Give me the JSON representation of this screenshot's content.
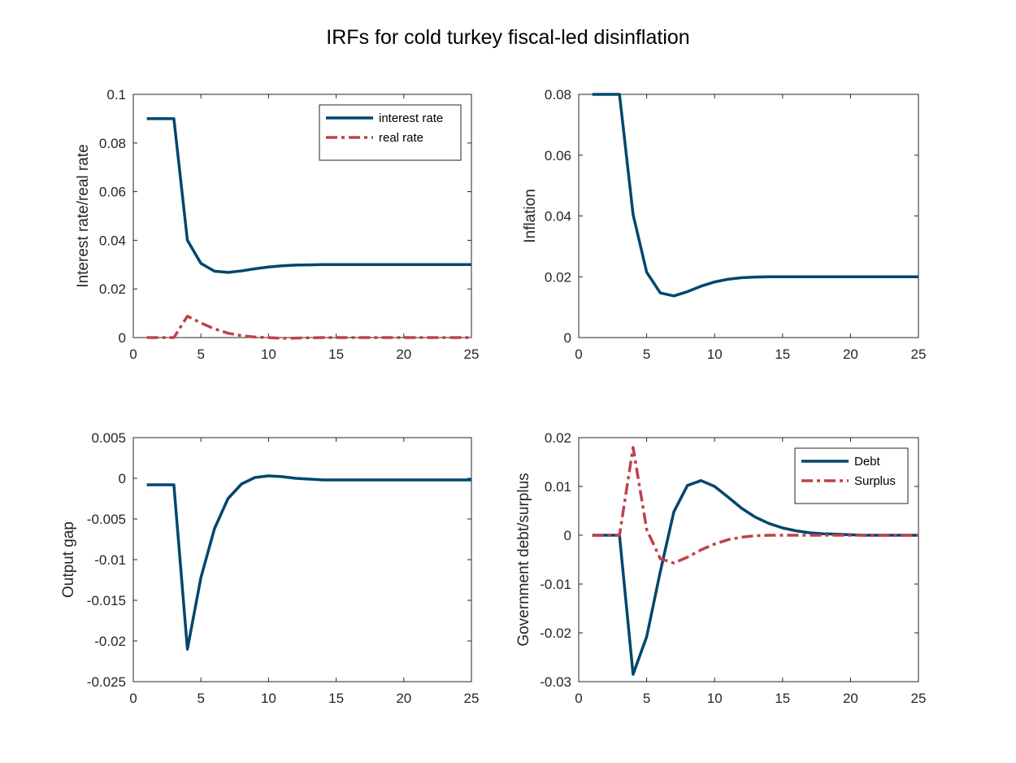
{
  "figure": {
    "title": "IRFs for cold turkey fiscal-led disinflation"
  },
  "colors": {
    "blue": "#00466e",
    "red": "#c0414c",
    "axis": "#262626",
    "background": "#ffffff"
  },
  "chart_data": [
    {
      "type": "line",
      "title": "",
      "xlabel": "",
      "ylabel": "Interest rate/real rate",
      "xlim": [
        0,
        25
      ],
      "ylim": [
        0,
        0.1
      ],
      "xticks": [
        0,
        5,
        10,
        15,
        20,
        25
      ],
      "xtick_labels": [
        "0",
        "5",
        "10",
        "15",
        "20",
        "25"
      ],
      "yticks": [
        0,
        0.02,
        0.04,
        0.06,
        0.08,
        0.1
      ],
      "ytick_labels": [
        "0",
        "0.02",
        "0.04",
        "0.06",
        "0.08",
        "0.1"
      ],
      "legend": "top-right",
      "grid": false,
      "x": [
        1,
        2,
        3,
        4,
        5,
        6,
        7,
        8,
        9,
        10,
        11,
        12,
        13,
        14,
        15,
        16,
        17,
        18,
        19,
        20,
        21,
        22,
        23,
        24,
        25
      ],
      "series": [
        {
          "name": "interest rate",
          "color": "#00466e",
          "style": "solid",
          "values": [
            0.09,
            0.09,
            0.09,
            0.04,
            0.0305,
            0.0273,
            0.0268,
            0.0274,
            0.0283,
            0.029,
            0.0295,
            0.0298,
            0.0299,
            0.03,
            0.03,
            0.03,
            0.03,
            0.03,
            0.03,
            0.03,
            0.03,
            0.03,
            0.03,
            0.03,
            0.03
          ]
        },
        {
          "name": "real rate",
          "color": "#c0414c",
          "style": "dashdot",
          "values": [
            0,
            0,
            0,
            0.0088,
            0.006,
            0.0036,
            0.0018,
            0.0008,
            0.0002,
            0,
            -0.0003,
            -0.0002,
            -0.0001,
            0,
            0,
            0,
            0,
            0,
            0,
            0,
            0,
            0,
            0,
            0,
            0
          ]
        }
      ]
    },
    {
      "type": "line",
      "title": "",
      "xlabel": "",
      "ylabel": "Inflation",
      "xlim": [
        0,
        25
      ],
      "ylim": [
        0,
        0.08
      ],
      "xticks": [
        0,
        5,
        10,
        15,
        20,
        25
      ],
      "xtick_labels": [
        "0",
        "5",
        "10",
        "15",
        "20",
        "25"
      ],
      "yticks": [
        0,
        0.02,
        0.04,
        0.06,
        0.08
      ],
      "ytick_labels": [
        "0",
        "0.02",
        "0.04",
        "0.06",
        "0.08"
      ],
      "legend": "none",
      "grid": false,
      "x": [
        1,
        2,
        3,
        4,
        5,
        6,
        7,
        8,
        9,
        10,
        11,
        12,
        13,
        14,
        15,
        16,
        17,
        18,
        19,
        20,
        21,
        22,
        23,
        24,
        25
      ],
      "series": [
        {
          "color": "#00466e",
          "style": "solid",
          "values": [
            0.08,
            0.08,
            0.08,
            0.0405,
            0.0215,
            0.0147,
            0.0137,
            0.0151,
            0.0169,
            0.0183,
            0.0192,
            0.0197,
            0.0199,
            0.02,
            0.02,
            0.02,
            0.02,
            0.02,
            0.02,
            0.02,
            0.02,
            0.02,
            0.02,
            0.02,
            0.02
          ]
        }
      ]
    },
    {
      "type": "line",
      "title": "",
      "xlabel": "",
      "ylabel": "Output gap",
      "xlim": [
        0,
        25
      ],
      "ylim": [
        -0.025,
        0.005
      ],
      "xticks": [
        0,
        5,
        10,
        15,
        20,
        25
      ],
      "xtick_labels": [
        "0",
        "5",
        "10",
        "15",
        "20",
        "25"
      ],
      "yticks": [
        -0.025,
        -0.02,
        -0.015,
        -0.01,
        -0.005,
        0,
        0.005
      ],
      "ytick_labels": [
        "-0.025",
        "-0.02",
        "-0.015",
        "-0.01",
        "-0.005",
        "0",
        "0.005"
      ],
      "legend": "none",
      "grid": false,
      "x": [
        1,
        2,
        3,
        4,
        5,
        6,
        7,
        8,
        9,
        10,
        11,
        12,
        13,
        14,
        15,
        16,
        17,
        18,
        19,
        20,
        21,
        22,
        23,
        24,
        25
      ],
      "series": [
        {
          "color": "#00466e",
          "style": "solid",
          "values": [
            -0.0008,
            -0.0008,
            -0.0008,
            -0.021,
            -0.0122,
            -0.0062,
            -0.0025,
            -0.0007,
            0.0001,
            0.0003,
            0.0002,
            0.0,
            -0.0001,
            -0.0002,
            -0.0002,
            -0.0002,
            -0.0002,
            -0.0002,
            -0.0002,
            -0.0002,
            -0.0002,
            -0.0002,
            -0.0002,
            -0.0002,
            -0.0002
          ]
        }
      ]
    },
    {
      "type": "line",
      "title": "",
      "xlabel": "",
      "ylabel": "Government debt/surplus",
      "xlim": [
        0,
        25
      ],
      "ylim": [
        -0.03,
        0.02
      ],
      "xticks": [
        0,
        5,
        10,
        15,
        20,
        25
      ],
      "xtick_labels": [
        "0",
        "5",
        "10",
        "15",
        "20",
        "25"
      ],
      "yticks": [
        -0.03,
        -0.02,
        -0.01,
        0,
        0.01,
        0.02
      ],
      "ytick_labels": [
        "-0.03",
        "-0.02",
        "-0.01",
        "0",
        "0.01",
        "0.02"
      ],
      "legend": "top-right",
      "grid": false,
      "x": [
        1,
        2,
        3,
        4,
        5,
        6,
        7,
        8,
        9,
        10,
        11,
        12,
        13,
        14,
        15,
        16,
        17,
        18,
        19,
        20,
        21,
        22,
        23,
        24,
        25
      ],
      "series": [
        {
          "name": "Debt",
          "color": "#00466e",
          "style": "solid",
          "values": [
            0,
            0,
            0,
            -0.0285,
            -0.0208,
            -0.0075,
            0.0048,
            0.0102,
            0.0112,
            0.01,
            0.0078,
            0.0055,
            0.0037,
            0.0024,
            0.0015,
            0.0009,
            0.0005,
            0.0003,
            0.0002,
            0.0001,
            0,
            0,
            0,
            0,
            0
          ]
        },
        {
          "name": "Surplus",
          "color": "#c0414c",
          "style": "dashdot",
          "values": [
            0,
            0,
            0,
            0.018,
            0.0012,
            -0.0048,
            -0.0057,
            -0.0045,
            -0.003,
            -0.0018,
            -0.0009,
            -0.0004,
            -0.0001,
            0,
            0,
            0,
            0,
            0,
            0,
            0,
            0,
            0,
            0,
            0,
            0
          ]
        }
      ]
    }
  ]
}
